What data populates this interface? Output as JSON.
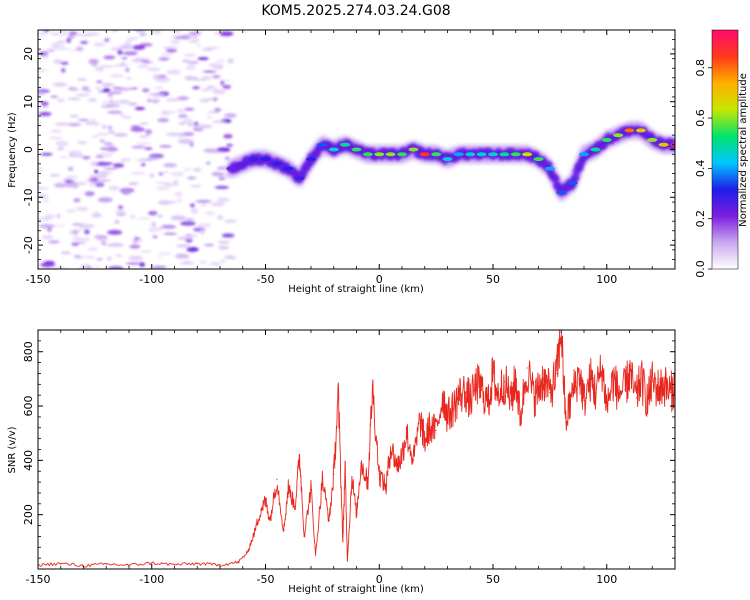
{
  "title": "KOM5.2025.274.03.24.G08",
  "chart_data": [
    {
      "type": "heatmap",
      "xlabel": "Height of straight line (km)",
      "ylabel": "Frequency (Hz)",
      "xlim": [
        -150,
        130
      ],
      "ylim": [
        -25,
        25
      ],
      "xticks": [
        -150,
        -100,
        -50,
        0,
        50,
        100
      ],
      "yticks": [
        -20,
        -10,
        0,
        10,
        20
      ],
      "colorbar": {
        "label": "Normalized spectral amplitude",
        "range": [
          0,
          0.95
        ],
        "ticks": [
          0.0,
          0.2,
          0.4,
          0.6,
          0.8
        ],
        "colors": [
          "#ffffff",
          "#c9a8f0",
          "#7a1ee0",
          "#1e1ee8",
          "#00c8ff",
          "#00e36a",
          "#c8e600",
          "#ffb000",
          "#ff3a1a",
          "#ff0a6e"
        ]
      },
      "noise_region_x": [
        -150,
        -65
      ],
      "signal_track": {
        "x": [
          -65,
          -60,
          -55,
          -50,
          -45,
          -40,
          -35,
          -30,
          -25,
          -20,
          -15,
          -10,
          -5,
          0,
          5,
          10,
          15,
          20,
          25,
          30,
          35,
          40,
          45,
          50,
          55,
          60,
          65,
          70,
          75,
          80,
          85,
          90,
          95,
          100,
          105,
          110,
          115,
          120,
          125,
          130
        ],
        "freq": [
          -4,
          -3,
          -2,
          -2,
          -3,
          -4,
          -6,
          -2,
          1,
          0,
          1,
          0,
          -1,
          -1,
          -1,
          -1,
          0,
          -1,
          -1,
          -2,
          -1,
          -1,
          -1,
          -1,
          -1,
          -1,
          -1,
          -2,
          -4,
          -9,
          -7,
          -1,
          0,
          2,
          3,
          4,
          4,
          2,
          1,
          1
        ],
        "amplitude": [
          0.22,
          0.25,
          0.28,
          0.3,
          0.3,
          0.32,
          0.28,
          0.3,
          0.35,
          0.45,
          0.5,
          0.55,
          0.55,
          0.6,
          0.6,
          0.55,
          0.6,
          0.85,
          0.55,
          0.45,
          0.4,
          0.45,
          0.45,
          0.45,
          0.5,
          0.55,
          0.65,
          0.55,
          0.4,
          0.35,
          0.35,
          0.4,
          0.5,
          0.55,
          0.6,
          0.8,
          0.7,
          0.6,
          0.7,
          0.9
        ]
      }
    },
    {
      "type": "line",
      "xlabel": "Height of straight line (km)",
      "ylabel": "SNR (v/v)",
      "xlim": [
        -150,
        130
      ],
      "ylim": [
        0,
        880
      ],
      "xticks": [
        -150,
        -100,
        -50,
        0,
        50,
        100
      ],
      "yticks": [
        200,
        400,
        600,
        800
      ],
      "series": [
        {
          "color": "#e8281e",
          "x": [
            -150,
            -140,
            -130,
            -120,
            -110,
            -100,
            -90,
            -80,
            -70,
            -62,
            -58,
            -55,
            -52,
            -50,
            -48,
            -45,
            -42,
            -40,
            -37,
            -35,
            -33,
            -30,
            -28,
            -25,
            -22,
            -20,
            -18,
            -16,
            -15,
            -14,
            -12,
            -10,
            -8,
            -5,
            -3,
            0,
            3,
            5,
            8,
            10,
            12,
            15,
            18,
            20,
            22,
            25,
            28,
            30,
            33,
            35,
            38,
            40,
            43,
            45,
            48,
            50,
            52,
            55,
            58,
            60,
            62,
            65,
            68,
            70,
            72,
            75,
            78,
            80,
            82,
            85,
            88,
            90,
            93,
            95,
            98,
            100,
            103,
            105,
            108,
            110,
            113,
            115,
            118,
            120,
            123,
            125,
            128,
            130
          ],
          "y": [
            15,
            20,
            12,
            18,
            14,
            22,
            16,
            20,
            15,
            25,
            60,
            130,
            220,
            250,
            180,
            330,
            140,
            300,
            230,
            420,
            120,
            300,
            50,
            330,
            180,
            350,
            640,
            100,
            380,
            30,
            340,
            200,
            390,
            320,
            670,
            350,
            300,
            450,
            380,
            420,
            500,
            400,
            550,
            470,
            520,
            510,
            640,
            560,
            600,
            640,
            650,
            620,
            680,
            660,
            610,
            720,
            640,
            690,
            620,
            700,
            560,
            740,
            630,
            660,
            700,
            650,
            720,
            880,
            540,
            650,
            720,
            620,
            700,
            650,
            740,
            600,
            700,
            650,
            660,
            720,
            630,
            700,
            620,
            690,
            660,
            680,
            650,
            670
          ]
        }
      ]
    }
  ]
}
